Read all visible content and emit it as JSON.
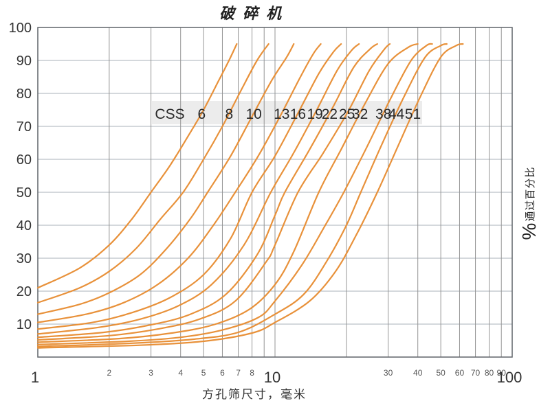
{
  "title": "破碎机",
  "x_axis": {
    "label": "方孔筛尺寸，毫米",
    "scale": "log",
    "range": [
      1,
      100
    ],
    "major_tick_labels": [
      "1",
      "10",
      "100"
    ],
    "major_tick_values": [
      1,
      10,
      100
    ],
    "minor_tick_labels": [
      "2",
      "3",
      "4",
      "5",
      "6",
      "7",
      "8",
      "30",
      "40",
      "50",
      "60",
      "70",
      "80",
      "90"
    ],
    "minor_tick_values": [
      2,
      3,
      4,
      5,
      6,
      7,
      8,
      30,
      40,
      50,
      60,
      70,
      80,
      90
    ],
    "gridline_values": [
      1,
      2,
      3,
      4,
      5,
      6,
      7,
      8,
      9,
      10,
      20,
      30,
      40,
      50,
      60,
      70,
      80,
      90,
      100
    ]
  },
  "y_axis": {
    "label_symbol": "%",
    "label_text": "通过百分比",
    "range": [
      0,
      100
    ],
    "tick_step": 10,
    "tick_labels": [
      "100",
      "90",
      "80",
      "70",
      "60",
      "50",
      "40",
      "30",
      "20",
      "10"
    ],
    "tick_values": [
      100,
      90,
      80,
      70,
      60,
      50,
      40,
      30,
      20,
      10
    ]
  },
  "css_band": {
    "prefix": "CSS",
    "labels": [
      "6",
      "8",
      "10",
      "13",
      "16",
      "19",
      "22",
      "25",
      "32",
      "38",
      "44",
      "51"
    ],
    "label_percent": 74
  },
  "colors": {
    "curve": "#e8913a",
    "grid_vertical": "#949494",
    "grid_horizontal": "#a9b0b8",
    "frame": "#5f6368",
    "band_bg": "#ececec",
    "text_dark": "#333333",
    "text_minor": "#555555",
    "band_text": "#2a2a2a"
  },
  "chart_data": {
    "type": "line",
    "title": "破碎机",
    "xlabel": "方孔筛尺寸，毫米",
    "ylabel": "%通过百分比",
    "x_scale": "log",
    "xlim": [
      1,
      100
    ],
    "ylim": [
      0,
      100
    ],
    "grid": true,
    "legend": "inline-band",
    "series": [
      {
        "name": "CSS 6",
        "css": 6,
        "points": [
          [
            1,
            21
          ],
          [
            1.5,
            27
          ],
          [
            2,
            34
          ],
          [
            2.5,
            42
          ],
          [
            3,
            50
          ],
          [
            3.6,
            58
          ],
          [
            4.3,
            67
          ],
          [
            5,
            75
          ],
          [
            5.8,
            84
          ],
          [
            6.4,
            90
          ],
          [
            6.9,
            95
          ]
        ]
      },
      {
        "name": "CSS 8",
        "css": 8,
        "points": [
          [
            1,
            16.5
          ],
          [
            1.5,
            21
          ],
          [
            2,
            26
          ],
          [
            2.6,
            33
          ],
          [
            3.3,
            42
          ],
          [
            4.1,
            50
          ],
          [
            5,
            60
          ],
          [
            6,
            70
          ],
          [
            7.2,
            81
          ],
          [
            8.4,
            90
          ],
          [
            9.4,
            95
          ]
        ]
      },
      {
        "name": "CSS 10",
        "css": 10,
        "points": [
          [
            1,
            13
          ],
          [
            1.5,
            16
          ],
          [
            2,
            19.5
          ],
          [
            2.7,
            25
          ],
          [
            3.5,
            33
          ],
          [
            4.4,
            42
          ],
          [
            5.2,
            50
          ],
          [
            6.5,
            61
          ],
          [
            8,
            73
          ],
          [
            9.7,
            84
          ],
          [
            11.2,
            91
          ],
          [
            12,
            95
          ]
        ]
      },
      {
        "name": "CSS 13",
        "css": 13,
        "points": [
          [
            1,
            10.5
          ],
          [
            1.6,
            13
          ],
          [
            2.3,
            16.5
          ],
          [
            3.2,
            22
          ],
          [
            4.3,
            30
          ],
          [
            5.5,
            40
          ],
          [
            6.8,
            50
          ],
          [
            8.5,
            61
          ],
          [
            10.5,
            73
          ],
          [
            12.8,
            85
          ],
          [
            14.5,
            92
          ],
          [
            15.6,
            95
          ]
        ]
      },
      {
        "name": "CSS 16",
        "css": 16,
        "points": [
          [
            1,
            8.5
          ],
          [
            1.7,
            10.5
          ],
          [
            2.5,
            13.5
          ],
          [
            3.6,
            18
          ],
          [
            5,
            25
          ],
          [
            6.5,
            36
          ],
          [
            8,
            50
          ],
          [
            10,
            61
          ],
          [
            12.5,
            74
          ],
          [
            15.3,
            86
          ],
          [
            17.6,
            92.5
          ],
          [
            19,
            95
          ]
        ]
      },
      {
        "name": "CSS 19",
        "css": 19,
        "points": [
          [
            1,
            7
          ],
          [
            1.8,
            9
          ],
          [
            2.7,
            11.5
          ],
          [
            3.9,
            15.5
          ],
          [
            5.4,
            22
          ],
          [
            7.4,
            34
          ],
          [
            9.6,
            50
          ],
          [
            12,
            62
          ],
          [
            15,
            75
          ],
          [
            18.3,
            87
          ],
          [
            21,
            93
          ],
          [
            22.6,
            95
          ]
        ]
      },
      {
        "name": "CSS 22",
        "css": 22,
        "points": [
          [
            1,
            6
          ],
          [
            1.9,
            7.5
          ],
          [
            3,
            9.8
          ],
          [
            4.4,
            13
          ],
          [
            6.2,
            19
          ],
          [
            8.4,
            31
          ],
          [
            10,
            43
          ],
          [
            11,
            50
          ],
          [
            14,
            63
          ],
          [
            17.6,
            76
          ],
          [
            21.5,
            88
          ],
          [
            25.2,
            93.5
          ],
          [
            27,
            95
          ]
        ]
      },
      {
        "name": "CSS 25",
        "css": 25,
        "points": [
          [
            1,
            5.2
          ],
          [
            2,
            6.5
          ],
          [
            3.2,
            8.5
          ],
          [
            4.8,
            11.5
          ],
          [
            6.8,
            17
          ],
          [
            9.2,
            29
          ],
          [
            10,
            34
          ],
          [
            12.5,
            50
          ],
          [
            16,
            62
          ],
          [
            20.5,
            75
          ],
          [
            25,
            87
          ],
          [
            29,
            93.5
          ],
          [
            30.5,
            95
          ]
        ]
      },
      {
        "name": "CSS 32",
        "css": 32,
        "points": [
          [
            1,
            4.5
          ],
          [
            2.2,
            5.6
          ],
          [
            3.6,
            7.2
          ],
          [
            5.5,
            9.8
          ],
          [
            7.8,
            14.5
          ],
          [
            10,
            22
          ],
          [
            12,
            32
          ],
          [
            15.3,
            50
          ],
          [
            19,
            63
          ],
          [
            24,
            77
          ],
          [
            30,
            89
          ],
          [
            36.5,
            94
          ],
          [
            40,
            95
          ]
        ]
      },
      {
        "name": "CSS 38",
        "css": 38,
        "points": [
          [
            1,
            3.8
          ],
          [
            2.4,
            4.8
          ],
          [
            4,
            6
          ],
          [
            6,
            8.2
          ],
          [
            8.5,
            12
          ],
          [
            10,
            17
          ],
          [
            13,
            28
          ],
          [
            16,
            39
          ],
          [
            19.5,
            50
          ],
          [
            24.5,
            64
          ],
          [
            30.5,
            78
          ],
          [
            37.5,
            90
          ],
          [
            43.5,
            94.5
          ],
          [
            46,
            95
          ]
        ]
      },
      {
        "name": "CSS 44",
        "css": 44,
        "points": [
          [
            1,
            3.2
          ],
          [
            2.5,
            4.2
          ],
          [
            4.5,
            5.4
          ],
          [
            7,
            7.5
          ],
          [
            10,
            13
          ],
          [
            13.2,
            19
          ],
          [
            16.5,
            29
          ],
          [
            20,
            40
          ],
          [
            23,
            50
          ],
          [
            28,
            64
          ],
          [
            35,
            79
          ],
          [
            43,
            91
          ],
          [
            50,
            94.5
          ],
          [
            53,
            95
          ]
        ]
      },
      {
        "name": "CSS 51",
        "css": 51,
        "points": [
          [
            1,
            2.8
          ],
          [
            2.7,
            3.6
          ],
          [
            5,
            4.8
          ],
          [
            8,
            7.3
          ],
          [
            10,
            10.5
          ],
          [
            14,
            17
          ],
          [
            18,
            26
          ],
          [
            22,
            37
          ],
          [
            27,
            50
          ],
          [
            33,
            64
          ],
          [
            41,
            79
          ],
          [
            50,
            91
          ],
          [
            58,
            94.5
          ],
          [
            62,
            95
          ]
        ]
      }
    ]
  }
}
